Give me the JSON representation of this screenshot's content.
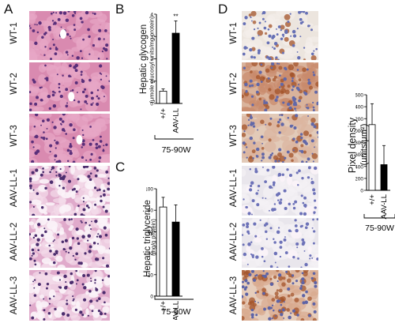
{
  "panels": {
    "a": {
      "letter": "A",
      "rows": [
        {
          "label": "WT-1",
          "stain": "he_normal"
        },
        {
          "label": "WT-2",
          "stain": "he_normal"
        },
        {
          "label": "WT-3",
          "stain": "he_normal"
        },
        {
          "label": "AAV-LL-1",
          "stain": "he_vacuolated"
        },
        {
          "label": "AAV-LL-2",
          "stain": "he_vacuolated"
        },
        {
          "label": "AAV-LL-3",
          "stain": "he_vacuolated"
        }
      ]
    },
    "b": {
      "letter": "B"
    },
    "c": {
      "letter": "C"
    },
    "d": {
      "letter": "D",
      "rows": [
        {
          "label": "WT-1",
          "stain": "ihc_light"
        },
        {
          "label": "WT-2",
          "stain": "ihc_strong"
        },
        {
          "label": "WT-3",
          "stain": "ihc_medium"
        },
        {
          "label": "AAV-LL-1",
          "stain": "ihc_negative"
        },
        {
          "label": "AAV-LL-2",
          "stain": "ihc_negative"
        },
        {
          "label": "AAV-LL-3",
          "stain": "ihc_strong_dots"
        }
      ]
    }
  },
  "chart_data": [
    {
      "id": "glycogen",
      "type": "bar",
      "ylabel": "Hepatic glycogen",
      "ylabel_sub": "(μmole glucosyl units/mg protein)",
      "ylim": [
        0,
        4
      ],
      "yticks": [
        "0",
        "1",
        "2",
        "3",
        "4"
      ],
      "categories": [
        "+/+",
        "AAV-LL"
      ],
      "values": [
        0.55,
        3.15
      ],
      "errors": [
        0.1,
        0.55
      ],
      "fills": [
        "#ffffff",
        "#000000"
      ],
      "annotation": "**",
      "group_label": "75-90W"
    },
    {
      "id": "triglyceride",
      "type": "bar",
      "ylabel": "Hepatic triglyceride",
      "ylabel_sub": "(mg/g protein)",
      "ylim": [
        0,
        100
      ],
      "yticks": [
        "0",
        "20",
        "40",
        "60",
        "80",
        "100"
      ],
      "categories": [
        "+/+",
        "AAV-LL"
      ],
      "values": [
        83,
        69
      ],
      "errors": [
        9,
        16
      ],
      "fills": [
        "#ffffff",
        "#000000"
      ],
      "group_label": "75-90W"
    },
    {
      "id": "pixel-density",
      "type": "bar",
      "ylabel": "Pixel density",
      "ylabel_sub": "(units/μm²)",
      "ylim": [
        0,
        1600
      ],
      "yticks": [
        "0",
        "200",
        "400",
        "600",
        "800",
        "1000",
        "1200",
        "1400",
        "1600"
      ],
      "categories": [
        "+/+",
        "AAV-LL"
      ],
      "values": [
        1100,
        430
      ],
      "errors": [
        350,
        320
      ],
      "fills": [
        "#ffffff",
        "#000000"
      ],
      "group_label": "75-90W"
    }
  ]
}
